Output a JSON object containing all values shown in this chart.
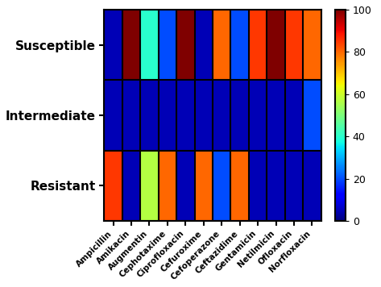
{
  "rows": [
    "Susceptible",
    "Intermediate",
    "Resistant"
  ],
  "cols": [
    "Ampicillin",
    "Amikacin",
    "Augmentin",
    "Cephotaxime",
    "Ciprofloxacin",
    "Cefuroxime",
    "Cefoperazone",
    "Ceftazidime",
    "Gentamicin",
    "Netilmicin",
    "Ofloxacin",
    "Norfloxacin"
  ],
  "data": [
    [
      5,
      100,
      40,
      20,
      100,
      5,
      80,
      20,
      85,
      100,
      85,
      80
    ],
    [
      5,
      5,
      5,
      5,
      5,
      5,
      5,
      5,
      5,
      5,
      5,
      20
    ],
    [
      85,
      5,
      57,
      80,
      5,
      80,
      20,
      80,
      5,
      5,
      5,
      5
    ]
  ],
  "cmap": "jet",
  "vmin": 0,
  "vmax": 100,
  "colorbar_ticks": [
    0,
    20,
    40,
    60,
    80,
    100
  ],
  "figsize": [
    4.73,
    3.56
  ],
  "dpi": 100
}
